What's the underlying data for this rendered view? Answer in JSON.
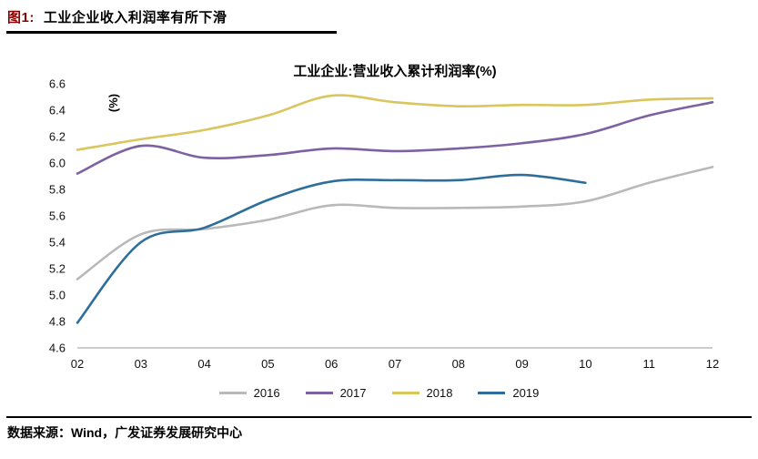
{
  "header": {
    "figure_label": "图1:",
    "figure_title": "工业企业收入利润率有所下滑",
    "accent_color": "#8B0000"
  },
  "chart_data": {
    "type": "line",
    "title": "工业企业:营业收入累计利润率(%)",
    "ylabel": "(%)",
    "ylim": [
      4.6,
      6.6
    ],
    "ytick_step": 0.2,
    "ytick_labels": [
      "4.6",
      "4.8",
      "5.0",
      "5.2",
      "5.4",
      "5.6",
      "5.8",
      "6.0",
      "6.2",
      "6.4",
      "6.6"
    ],
    "categories": [
      "02",
      "03",
      "04",
      "05",
      "06",
      "07",
      "08",
      "09",
      "10",
      "11",
      "12"
    ],
    "grid": false,
    "legend_position": "bottom",
    "series": [
      {
        "name": "2016",
        "color": "#b9b9b9",
        "values": [
          5.12,
          5.46,
          5.5,
          5.57,
          5.68,
          5.66,
          5.66,
          5.67,
          5.71,
          5.85,
          5.97
        ]
      },
      {
        "name": "2017",
        "color": "#7d61a2",
        "values": [
          5.92,
          6.13,
          6.04,
          6.06,
          6.11,
          6.09,
          6.11,
          6.15,
          6.22,
          6.36,
          6.46
        ]
      },
      {
        "name": "2018",
        "color": "#d9c65f",
        "values": [
          6.1,
          6.18,
          6.25,
          6.36,
          6.51,
          6.46,
          6.43,
          6.44,
          6.44,
          6.48,
          6.49
        ]
      },
      {
        "name": "2019",
        "color": "#2e6f9a",
        "values": [
          4.79,
          5.4,
          5.51,
          5.72,
          5.86,
          5.87,
          5.87,
          5.91,
          5.85,
          null,
          null
        ]
      }
    ]
  },
  "footer": {
    "source": "数据来源：Wind，广发证券发展研究中心"
  }
}
